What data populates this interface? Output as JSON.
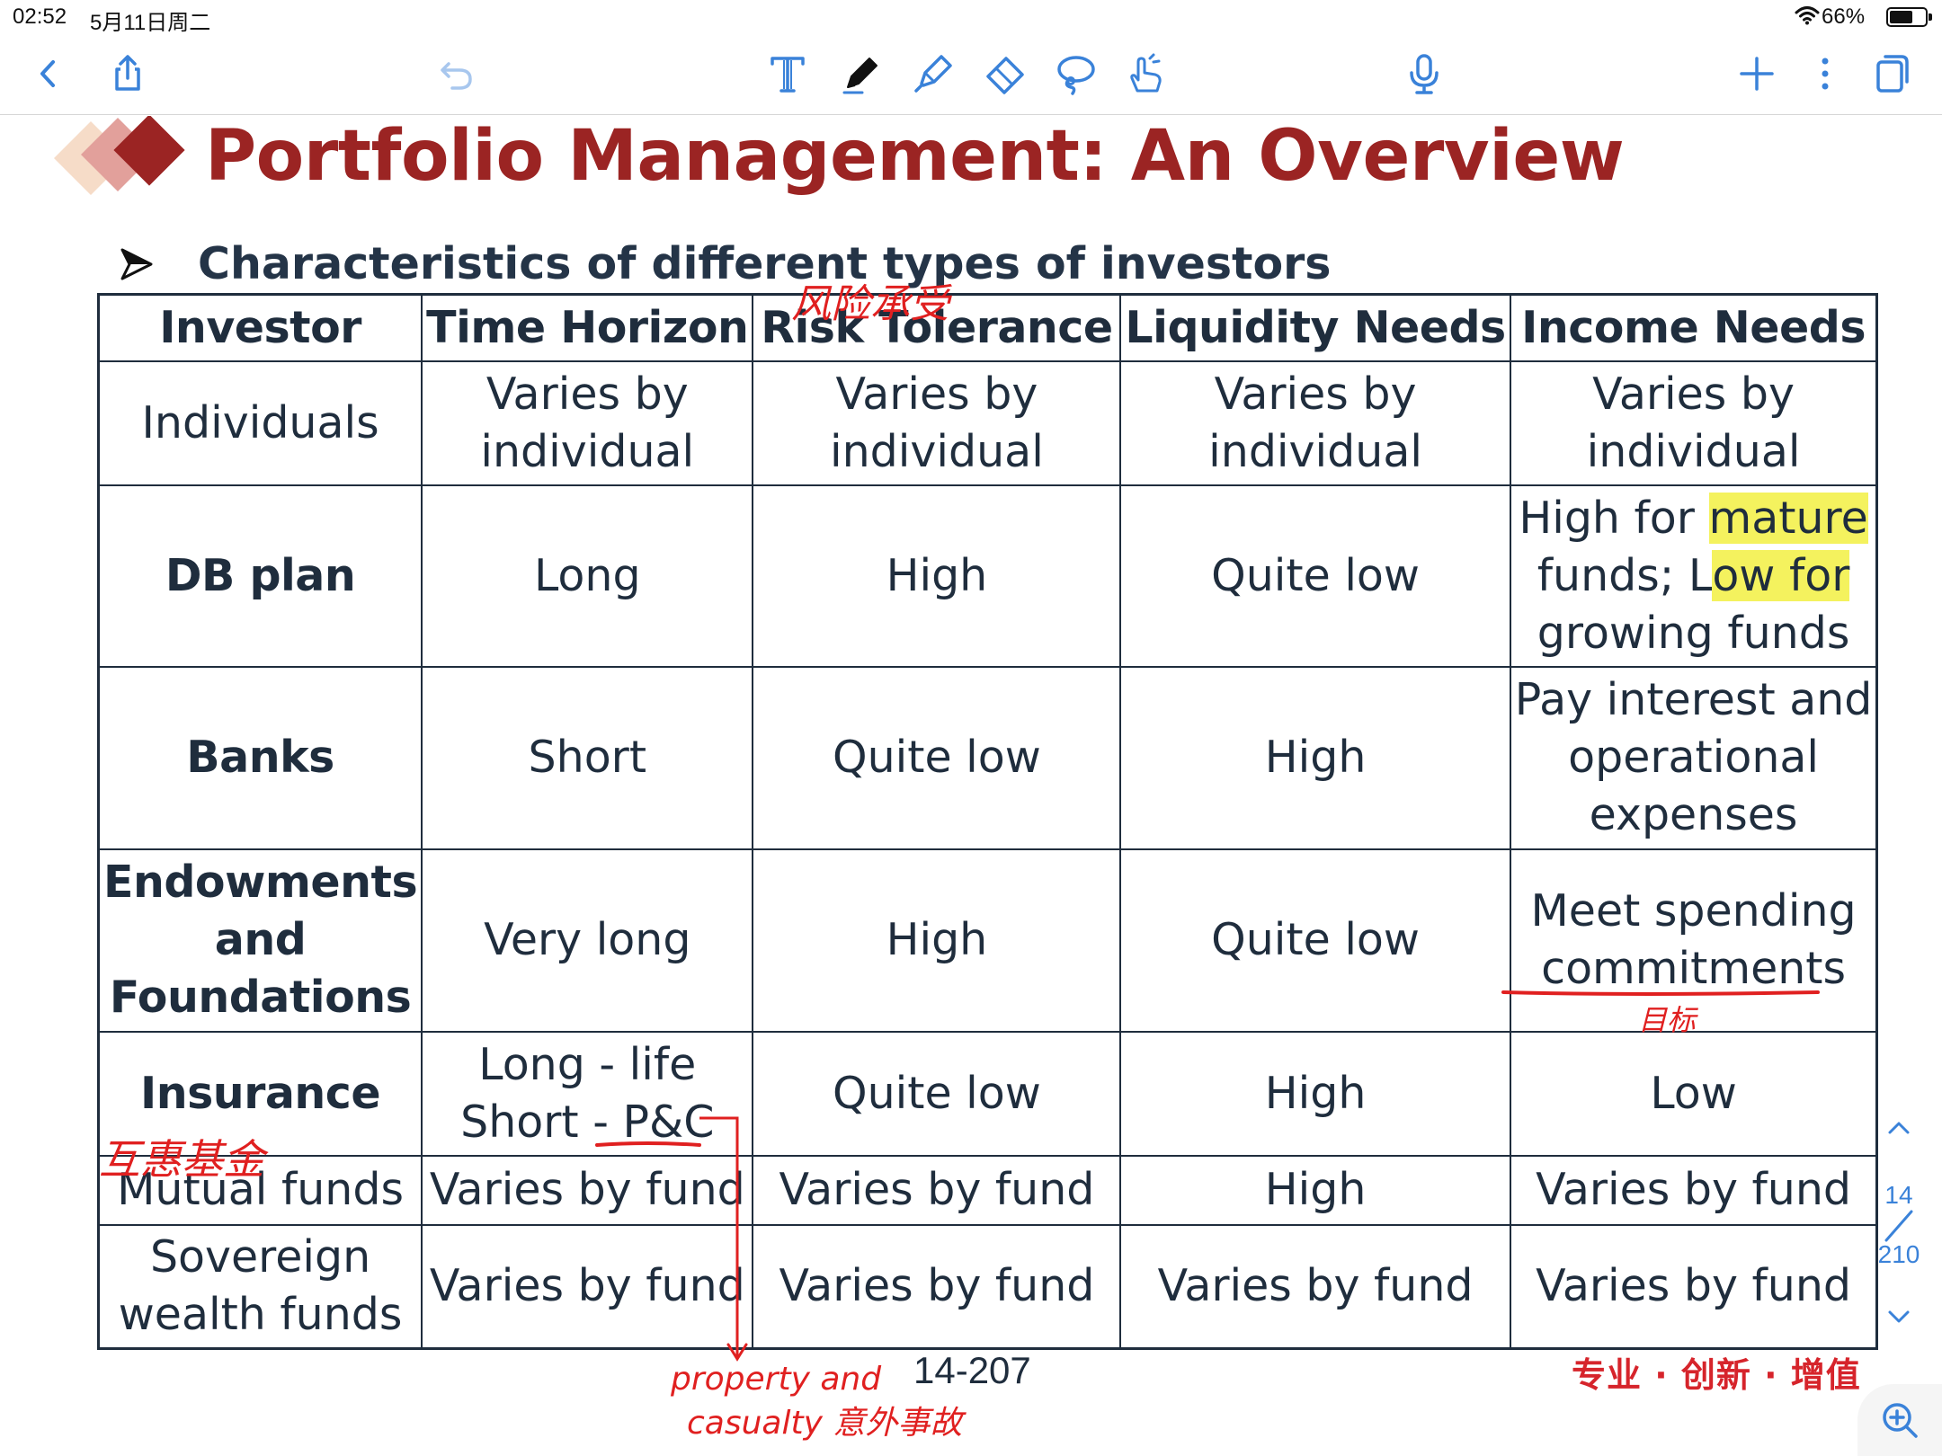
{
  "status_bar": {
    "time": "02:52",
    "date": "5月11日周二",
    "battery": "66%",
    "battery_level": 0.66
  },
  "toolbar": {
    "left": [
      "back-icon",
      "share-icon",
      "undo-icon"
    ],
    "tools": [
      "text-tool-icon",
      "pen-icon",
      "highlighter-icon",
      "eraser-icon",
      "lasso-icon",
      "hand-pointer-icon"
    ],
    "right": [
      "microphone-icon",
      "add-icon",
      "more-icon",
      "pages-icon"
    ],
    "accent_color": "#3a82d9"
  },
  "slide": {
    "title": "Portfolio Management: An Overview",
    "subtitle": "Characteristics of different types of investors",
    "title_color": "#9b2423",
    "table": {
      "headers": [
        "Investor",
        "Time Horizon",
        "Risk Tolerance",
        "Liquidity Needs",
        "Income Needs"
      ],
      "rows": [
        {
          "investor": [
            "Individuals"
          ],
          "time": [
            "Varies by",
            "individual"
          ],
          "risk": [
            "Varies by",
            "individual"
          ],
          "liquidity": [
            "Varies by",
            "individual"
          ],
          "income": [
            "Varies by",
            "individual"
          ]
        },
        {
          "investor": [
            "DB plan"
          ],
          "time": [
            "Long"
          ],
          "risk": [
            "High"
          ],
          "liquidity": [
            "Quite low"
          ],
          "income_a": "High for ",
          "income_b": "mature",
          "income_c": "funds; L",
          "income_d": "ow for",
          "income_e": "growing funds"
        },
        {
          "investor": [
            "Banks"
          ],
          "time": [
            "Short"
          ],
          "risk": [
            "Quite low"
          ],
          "liquidity": [
            "High"
          ],
          "income": [
            "Pay interest and",
            "operational",
            "expenses"
          ]
        },
        {
          "investor": [
            "Endowments",
            "and",
            "Foundations"
          ],
          "time": [
            "Very long"
          ],
          "risk": [
            "High"
          ],
          "liquidity": [
            "Quite low"
          ],
          "income": [
            "Meet spending",
            "commitments"
          ]
        },
        {
          "investor": [
            "Insurance"
          ],
          "time": [
            "Long - life",
            "Short - P&C"
          ],
          "risk": [
            "Quite low"
          ],
          "liquidity": [
            "High"
          ],
          "income": [
            "Low"
          ]
        },
        {
          "investor": [
            "Mutual funds"
          ],
          "time": [
            "Varies by fund"
          ],
          "risk": [
            "Varies by fund"
          ],
          "liquidity": [
            "High"
          ],
          "income": [
            "Varies by fund"
          ]
        },
        {
          "investor": [
            "Sovereign",
            "wealth funds"
          ],
          "time": [
            "Varies by fund"
          ],
          "risk": [
            "Varies by fund"
          ],
          "liquidity": [
            "Varies by fund"
          ],
          "income": [
            "Varies by fund"
          ]
        }
      ]
    },
    "page_label": "14-207",
    "slogan": "专业 · 创新 · 增值"
  },
  "annotations": {
    "risk_tolerance_cn": "风险承受",
    "commitments_cn": "目标",
    "mutual_funds_cn": "互惠基金",
    "pc_expansion_line1": "property and",
    "pc_expansion_line2": "casualty 意外事故",
    "ink_color": "#e02020"
  },
  "pager": {
    "current": "14",
    "total": "210"
  }
}
